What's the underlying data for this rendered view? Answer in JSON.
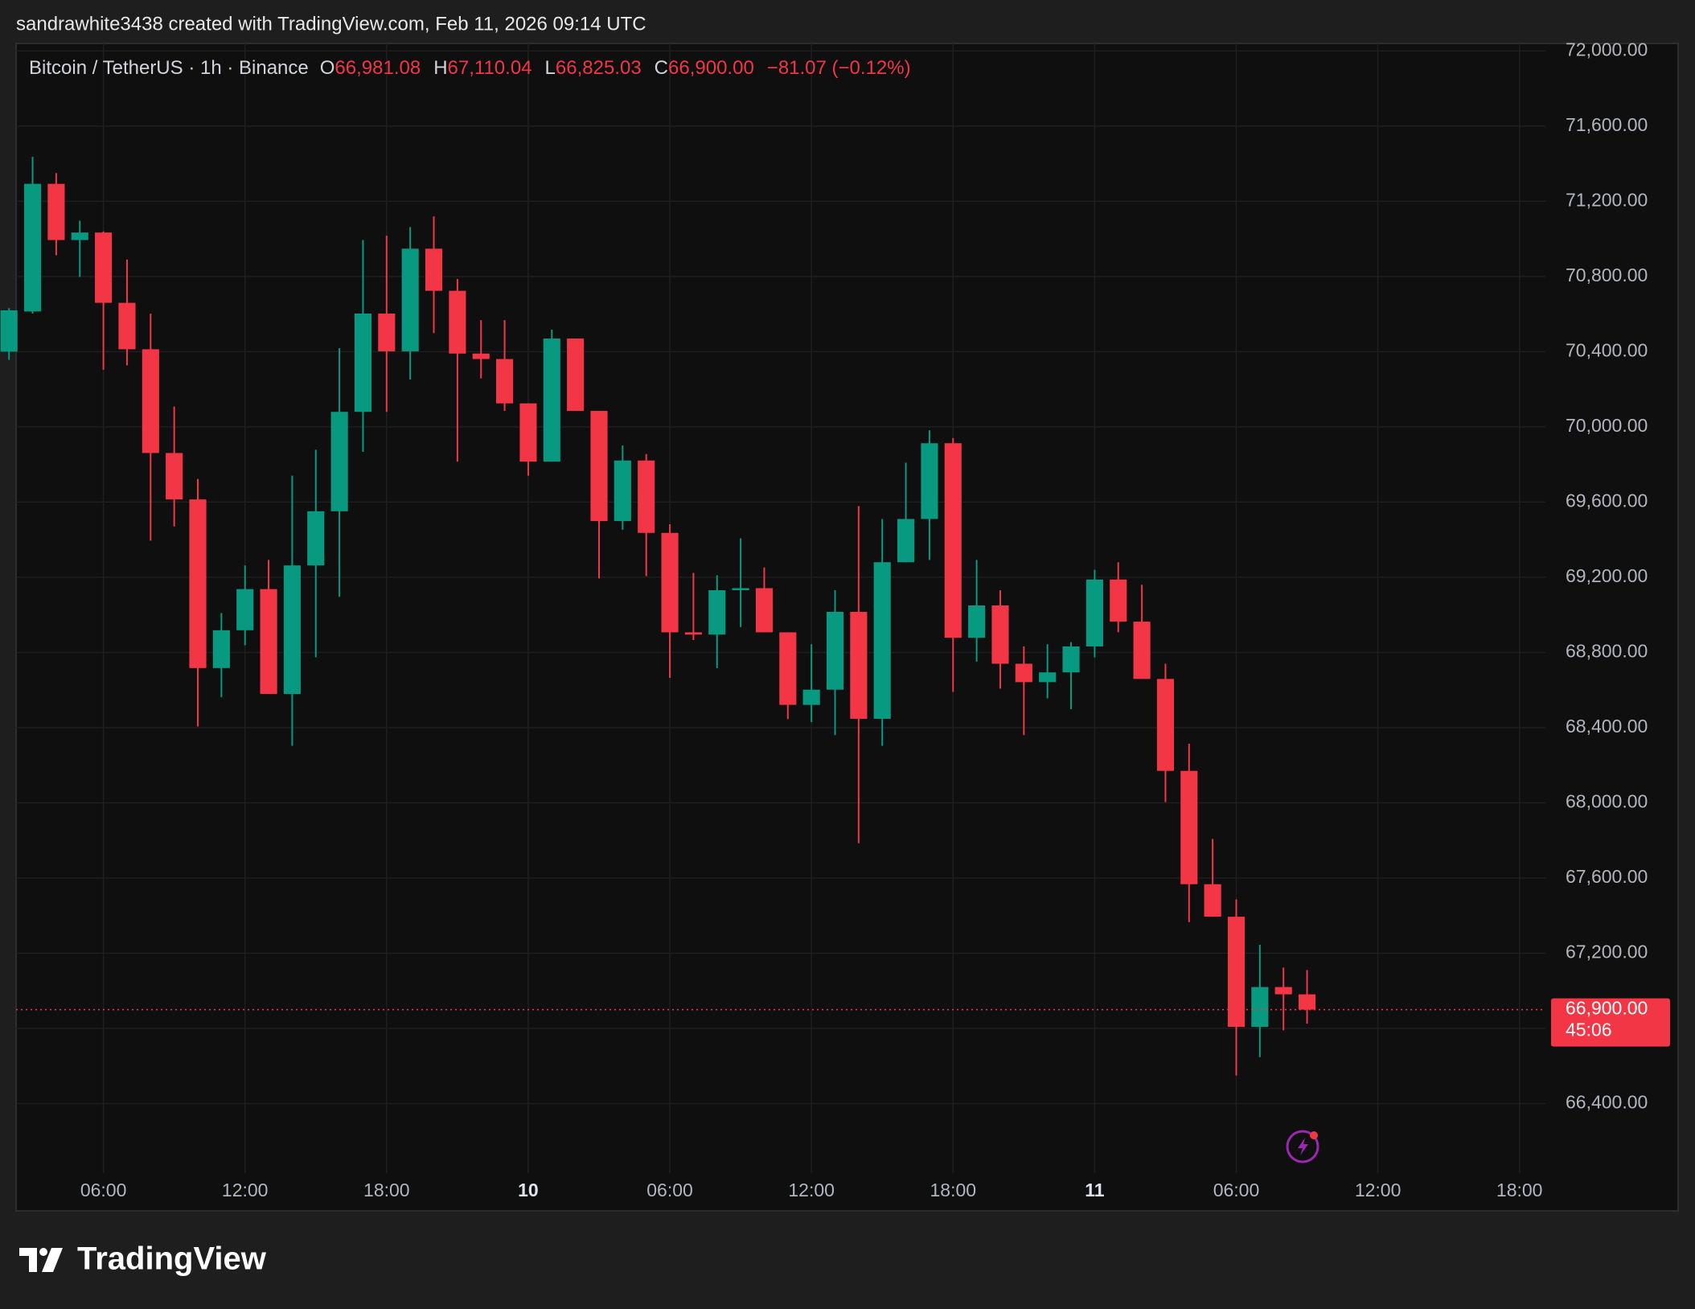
{
  "caption": "sandrawhite3438 created with TradingView.com, Feb 11, 2026 09:14 UTC",
  "brand": "TradingView",
  "chart_data": {
    "type": "candlestick",
    "symbol": "Bitcoin / TetherUS · 1h · Binance",
    "legend_items": [
      {
        "key": "O",
        "value": 66981.08,
        "label": "66,981.08"
      },
      {
        "key": "H",
        "value": 67110.04,
        "label": "67,110.04"
      },
      {
        "key": "L",
        "value": 66825.03,
        "label": "66,825.03"
      },
      {
        "key": "C",
        "value": 66900,
        "label": "66,900.00"
      }
    ],
    "change": "−81.07 (−0.12%)",
    "up_color": "#089981",
    "down_color": "#f23645",
    "x": [
      2,
      3,
      4,
      5,
      6,
      7,
      8,
      9,
      10,
      11,
      12,
      13,
      14,
      15,
      16,
      17,
      18,
      19,
      20,
      21,
      22,
      23,
      24,
      25,
      26,
      27,
      28,
      29,
      30,
      31,
      32,
      33,
      34,
      35,
      36,
      37,
      38,
      39,
      40,
      41,
      42,
      43,
      44,
      45,
      46,
      47,
      48,
      49,
      50,
      51,
      52,
      53,
      54,
      55,
      56,
      57
    ],
    "open": [
      70400,
      70614,
      71293,
      70994,
      71034,
      70660,
      70413,
      69861,
      69614,
      68717,
      68918,
      69137,
      68579,
      69263,
      69551,
      70080,
      70603,
      70402,
      70948,
      70724,
      70390,
      70361,
      70125,
      69815,
      70470,
      70085,
      69499,
      69821,
      69436,
      68907,
      68895,
      69131,
      69142,
      68907,
      68521,
      68602,
      69016,
      68447,
      69280,
      69510,
      69913,
      68878,
      69050,
      68740,
      68642,
      68694,
      68832,
      69188,
      68964,
      68659,
      68170,
      67567,
      67394,
      66808,
      67020,
      66981.08
    ],
    "high": [
      70631,
      71437,
      71350,
      71097,
      71040,
      70890,
      70603,
      70108,
      69723,
      69010,
      69263,
      69292,
      69740,
      69878,
      70419,
      70994,
      71017,
      71063,
      71120,
      70787,
      70568,
      70568,
      70125,
      70517,
      70470,
      70085,
      69901,
      69855,
      69482,
      69223,
      69211,
      69407,
      69252,
      68907,
      68843,
      69131,
      69579,
      69510,
      69809,
      69982,
      69941,
      69292,
      69131,
      68832,
      68843,
      68855,
      69240,
      69280,
      69160,
      68740,
      68314,
      67808,
      67486,
      67245,
      67124,
      67110.04
    ],
    "low": [
      70356,
      70603,
      70913,
      70798,
      70304,
      70327,
      69395,
      69470,
      68406,
      68562,
      68838,
      68579,
      68303,
      68774,
      69096,
      69867,
      70080,
      70252,
      70499,
      69815,
      70258,
      70085,
      69740,
      69815,
      70085,
      69194,
      69453,
      69206,
      68665,
      68866,
      68717,
      68935,
      68907,
      68446,
      68429,
      68360,
      67785,
      68303,
      69280,
      69292,
      68590,
      68751,
      68608,
      68360,
      68556,
      68498,
      68774,
      68907,
      68659,
      68004,
      67365,
      67394,
      66549,
      66647,
      66790,
      66825.03
    ],
    "close": [
      70620,
      71293,
      70994,
      71034,
      70660,
      70413,
      69861,
      69614,
      68717,
      68918,
      69137,
      68579,
      69263,
      69551,
      70080,
      70603,
      70402,
      70948,
      70724,
      70390,
      70361,
      70125,
      69815,
      70470,
      70085,
      69499,
      69821,
      69436,
      68907,
      68895,
      69131,
      69142,
      68907,
      68521,
      68602,
      69016,
      68447,
      69280,
      69510,
      69913,
      68878,
      69050,
      68740,
      68642,
      68694,
      68832,
      69188,
      68964,
      68659,
      68170,
      67567,
      67394,
      66808,
      67020,
      66981.08,
      66900
    ],
    "xlim": [
      2.3,
      67.1
    ],
    "ylim": [
      66030,
      72040
    ],
    "xticks": [
      {
        "value": 6,
        "label": "06:00"
      },
      {
        "value": 12,
        "label": "12:00"
      },
      {
        "value": 18,
        "label": "18:00"
      },
      {
        "value": 24,
        "label": "10"
      },
      {
        "value": 30,
        "label": "06:00"
      },
      {
        "value": 36,
        "label": "12:00"
      },
      {
        "value": 42,
        "label": "18:00"
      },
      {
        "value": 48,
        "label": "11"
      },
      {
        "value": 54,
        "label": "06:00"
      },
      {
        "value": 60,
        "label": "12:00"
      },
      {
        "value": 66,
        "label": "18:00"
      }
    ],
    "yticks": [
      {
        "value": 66400,
        "label": "66,400.00"
      },
      {
        "value": 66800,
        "label": "66,800.00"
      },
      {
        "value": 67200,
        "label": "67,200.00"
      },
      {
        "value": 67600,
        "label": "67,600.00"
      },
      {
        "value": 68000,
        "label": "68,000.00"
      },
      {
        "value": 68400,
        "label": "68,400.00"
      },
      {
        "value": 68800,
        "label": "68,800.00"
      },
      {
        "value": 69200,
        "label": "69,200.00"
      },
      {
        "value": 69600,
        "label": "69,600.00"
      },
      {
        "value": 70000,
        "label": "70,000.00"
      },
      {
        "value": 70400,
        "label": "70,400.00"
      },
      {
        "value": 70800,
        "label": "70,800.00"
      },
      {
        "value": 71200,
        "label": "71,200.00"
      },
      {
        "value": 71600,
        "label": "71,600.00"
      },
      {
        "value": 72000,
        "label": "72,000.00"
      }
    ],
    "price_tag": {
      "value": 66900,
      "label": "66,900.00",
      "countdown": "45:06"
    },
    "grid": true
  }
}
